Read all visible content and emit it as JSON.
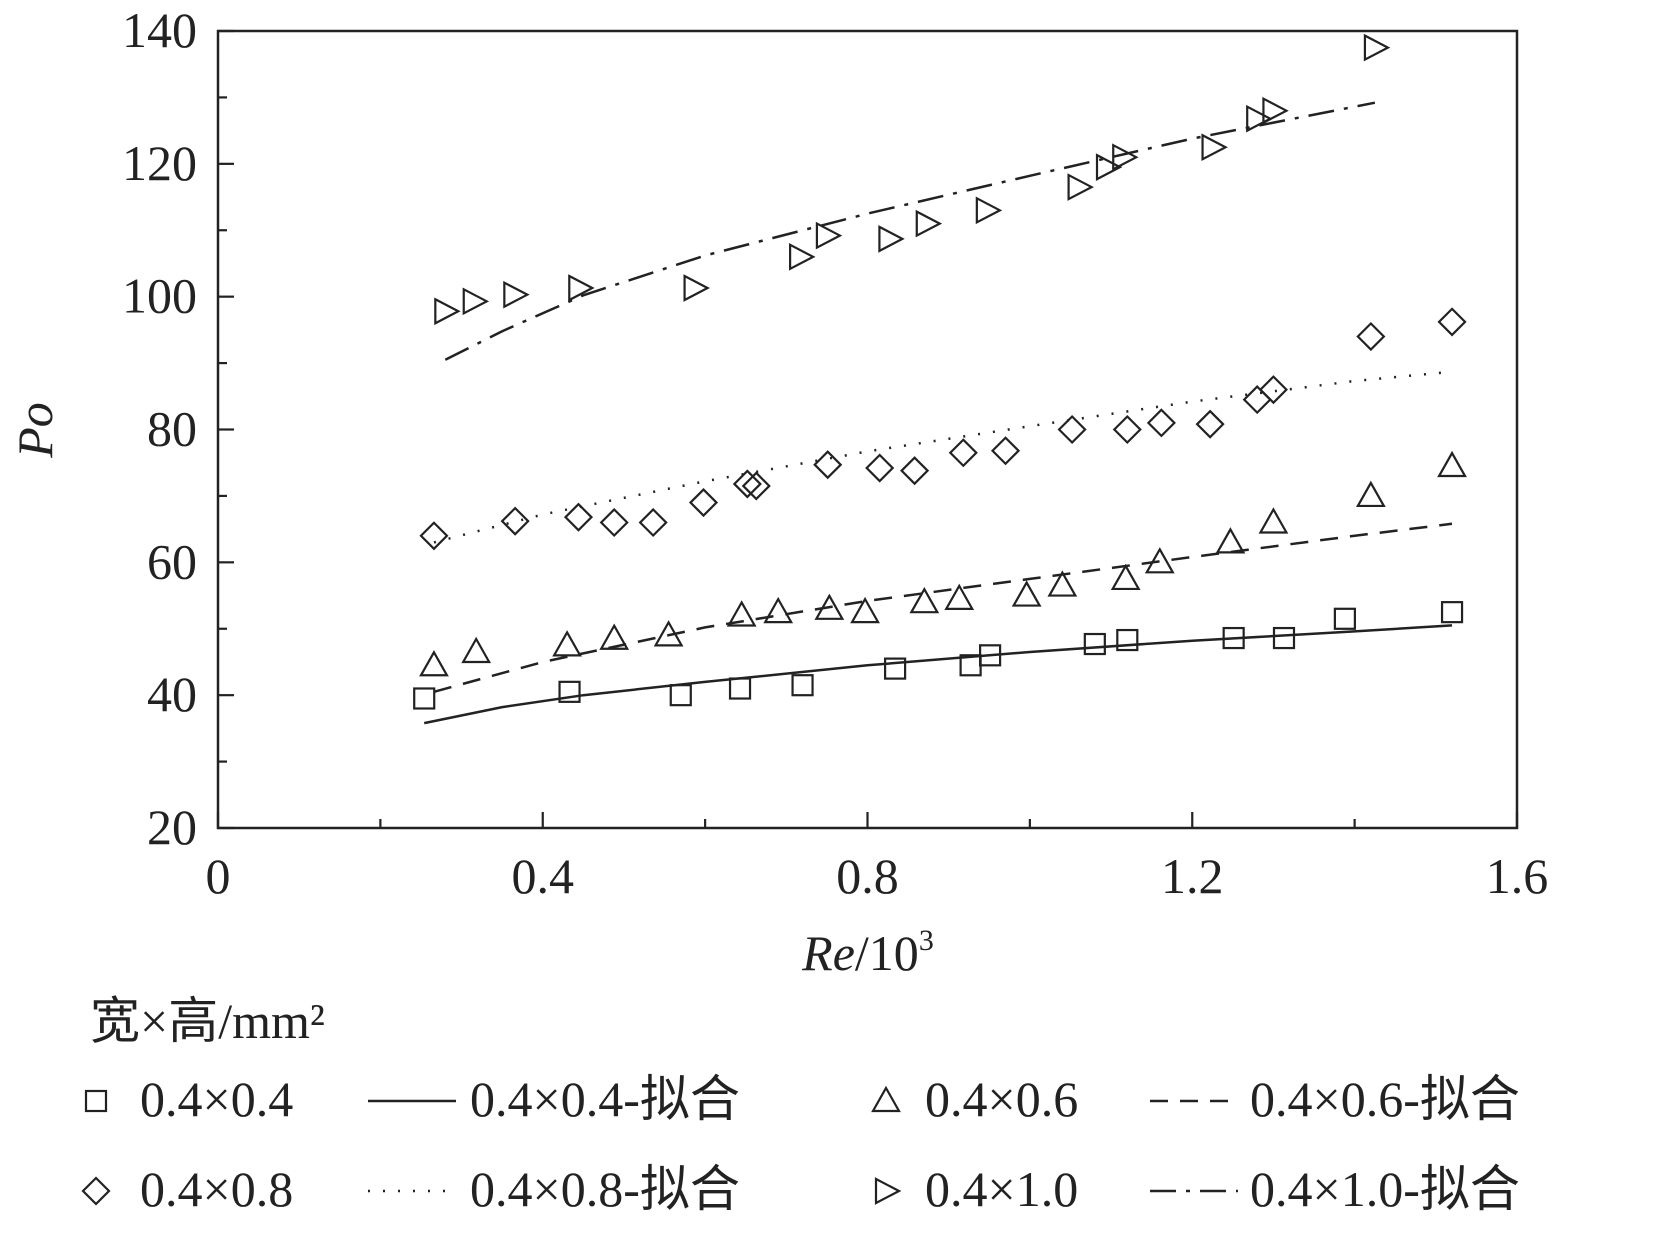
{
  "chart_data": {
    "type": "scatter",
    "xlabel_italic": "Re",
    "xlabel_rest": "/10",
    "xlabel_sup": "3",
    "ylabel": "Po",
    "xlim": [
      0,
      1.6
    ],
    "ylim": [
      20,
      140
    ],
    "xticks": [
      "0",
      "0.4",
      "0.8",
      "1.2",
      "1.6"
    ],
    "yticks": [
      "20",
      "40",
      "60",
      "80",
      "100",
      "120",
      "140"
    ],
    "legend_title": "宽×高/mm²",
    "series": [
      {
        "name": "0.4×0.4",
        "marker": "square",
        "points": [
          [
            0.254,
            39.5
          ],
          [
            0.433,
            40.5
          ],
          [
            0.57,
            40
          ],
          [
            0.643,
            41
          ],
          [
            0.72,
            41.5
          ],
          [
            0.834,
            44
          ],
          [
            0.927,
            44.5
          ],
          [
            0.951,
            46
          ],
          [
            1.08,
            47.7
          ],
          [
            1.12,
            48.3
          ],
          [
            1.251,
            48.6
          ],
          [
            1.313,
            48.6
          ],
          [
            1.388,
            51.5
          ],
          [
            1.52,
            52.5
          ]
        ],
        "fit": {
          "name": "0.4×0.4-拟合",
          "dash": "solid",
          "points": [
            [
              0.254,
              35.8
            ],
            [
              0.35,
              38.2
            ],
            [
              0.45,
              40
            ],
            [
              0.6,
              42
            ],
            [
              0.8,
              44.5
            ],
            [
              1.0,
              46.5
            ],
            [
              1.2,
              48.2
            ],
            [
              1.4,
              49.6
            ],
            [
              1.52,
              50.5
            ]
          ]
        }
      },
      {
        "name": "0.4×0.6",
        "marker": "triangle-up",
        "points": [
          [
            0.266,
            44.5
          ],
          [
            0.318,
            46.5
          ],
          [
            0.43,
            47.5
          ],
          [
            0.488,
            48.5
          ],
          [
            0.555,
            49
          ],
          [
            0.645,
            52
          ],
          [
            0.69,
            52.5
          ],
          [
            0.753,
            53
          ],
          [
            0.797,
            52.5
          ],
          [
            0.87,
            54
          ],
          [
            0.913,
            54.5
          ],
          [
            0.996,
            55
          ],
          [
            1.04,
            56.5
          ],
          [
            1.118,
            57.5
          ],
          [
            1.16,
            60
          ],
          [
            1.247,
            63
          ],
          [
            1.3,
            66
          ],
          [
            1.42,
            70
          ],
          [
            1.52,
            74.5
          ]
        ],
        "fit": {
          "name": "0.4×0.6-拟合",
          "dash": "dashed",
          "points": [
            [
              0.266,
              40.5
            ],
            [
              0.4,
              45
            ],
            [
              0.6,
              50.2
            ],
            [
              0.8,
              54.2
            ],
            [
              1.0,
              57.5
            ],
            [
              1.2,
              60.8
            ],
            [
              1.4,
              64
            ],
            [
              1.52,
              65.8
            ]
          ]
        }
      },
      {
        "name": "0.4×0.8",
        "marker": "diamond",
        "points": [
          [
            0.266,
            64
          ],
          [
            0.366,
            66.2
          ],
          [
            0.444,
            66.8
          ],
          [
            0.488,
            66
          ],
          [
            0.536,
            66
          ],
          [
            0.598,
            69
          ],
          [
            0.652,
            71.8
          ],
          [
            0.663,
            71.5
          ],
          [
            0.751,
            74.7
          ],
          [
            0.815,
            74.2
          ],
          [
            0.858,
            73.8
          ],
          [
            0.918,
            76.5
          ],
          [
            0.97,
            76.8
          ],
          [
            1.052,
            80
          ],
          [
            1.12,
            80
          ],
          [
            1.162,
            81
          ],
          [
            1.222,
            80.8
          ],
          [
            1.28,
            84.5
          ],
          [
            1.3,
            86
          ],
          [
            1.42,
            94
          ],
          [
            1.52,
            96.2
          ]
        ],
        "fit": {
          "name": "0.4×0.8-拟合",
          "dash": "dotted",
          "points": [
            [
              0.266,
              63
            ],
            [
              0.4,
              67.2
            ],
            [
              0.6,
              72.2
            ],
            [
              0.8,
              76.7
            ],
            [
              1.0,
              80.5
            ],
            [
              1.2,
              84.2
            ],
            [
              1.4,
              87.3
            ],
            [
              1.52,
              88.7
            ]
          ]
        }
      },
      {
        "name": "0.4×1.0",
        "marker": "triangle-right",
        "points": [
          [
            0.28,
            97.8
          ],
          [
            0.315,
            99.3
          ],
          [
            0.365,
            100.3
          ],
          [
            0.445,
            101.3
          ],
          [
            0.587,
            101.3
          ],
          [
            0.717,
            106
          ],
          [
            0.75,
            109.2
          ],
          [
            0.827,
            108.7
          ],
          [
            0.873,
            111
          ],
          [
            0.947,
            113
          ],
          [
            1.06,
            116.5
          ],
          [
            1.095,
            119.5
          ],
          [
            1.115,
            121
          ],
          [
            1.225,
            122.5
          ],
          [
            1.28,
            126.8
          ],
          [
            1.3,
            128
          ],
          [
            1.425,
            137.5
          ]
        ],
        "fit": {
          "name": "0.4×1.0-拟合",
          "dash": "dashdot",
          "points": [
            [
              0.28,
              90.5
            ],
            [
              0.35,
              94.8
            ],
            [
              0.45,
              100.2
            ],
            [
              0.6,
              106.2
            ],
            [
              0.8,
              112.5
            ],
            [
              1.0,
              118.2
            ],
            [
              1.2,
              123.8
            ],
            [
              1.425,
              129.2
            ]
          ]
        }
      }
    ],
    "legend_rows": [
      [
        "0.4×0.4",
        "0.4×0.4-拟合",
        "0.4×0.6",
        "0.4×0.6-拟合"
      ],
      [
        "0.4×0.8",
        "0.4×0.8-拟合",
        "0.4×1.0",
        "0.4×1.0-拟合"
      ]
    ],
    "colors": {
      "line": "#222222",
      "background": "#ffffff"
    }
  }
}
